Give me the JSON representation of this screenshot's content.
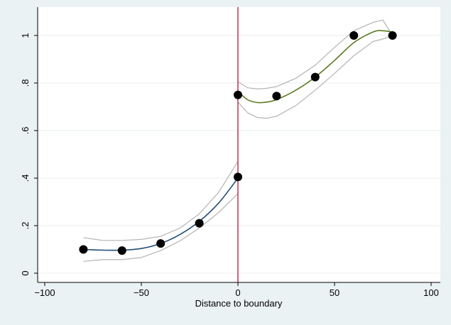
{
  "chart_data": {
    "type": "scatter",
    "title": "",
    "xlabel": "Distance to boundary",
    "ylabel": "",
    "xlim": [
      -100,
      100
    ],
    "ylim": [
      0,
      1
    ],
    "xticks": [
      -100,
      -50,
      0,
      50,
      100
    ],
    "xtick_labels": [
      "−100",
      "−50",
      "0",
      "50",
      "100"
    ],
    "yticks": [
      0,
      0.2,
      0.4,
      0.6,
      0.8,
      1
    ],
    "ytick_labels": [
      "0",
      ".2",
      ".4",
      ".6",
      ".8",
      "1"
    ],
    "grid": true,
    "legend": "none",
    "vline": {
      "x": 0,
      "color": "#b2163a"
    },
    "points": [
      {
        "x": -80,
        "y": 0.1
      },
      {
        "x": -60,
        "y": 0.095
      },
      {
        "x": -40,
        "y": 0.125
      },
      {
        "x": -20,
        "y": 0.21
      },
      {
        "x": 0,
        "y": 0.405
      },
      {
        "x": 0,
        "y": 0.75
      },
      {
        "x": 20,
        "y": 0.745
      },
      {
        "x": 40,
        "y": 0.825
      },
      {
        "x": 60,
        "y": 1.0
      },
      {
        "x": 80,
        "y": 1.0
      }
    ],
    "fits": [
      {
        "side": "left",
        "color": "#1f4e79",
        "x": [
          -80,
          -70,
          -60,
          -50,
          -40,
          -30,
          -20,
          -10,
          0
        ],
        "y": [
          0.1,
          0.097,
          0.097,
          0.104,
          0.125,
          0.163,
          0.218,
          0.295,
          0.4
        ],
        "upper": [
          0.15,
          0.138,
          0.138,
          0.142,
          0.155,
          0.19,
          0.25,
          0.34,
          0.47
        ],
        "lower": [
          0.05,
          0.057,
          0.057,
          0.066,
          0.095,
          0.136,
          0.19,
          0.255,
          0.335
        ]
      },
      {
        "side": "right",
        "color": "#5a7a1e",
        "x": [
          0,
          5,
          10,
          15,
          20,
          30,
          40,
          50,
          60,
          70,
          75,
          80
        ],
        "y": [
          0.765,
          0.73,
          0.718,
          0.72,
          0.73,
          0.77,
          0.825,
          0.895,
          0.97,
          1.015,
          1.02,
          1.015
        ],
        "upper": [
          0.805,
          0.78,
          0.775,
          0.778,
          0.785,
          0.82,
          0.875,
          0.95,
          1.02,
          1.055,
          1.065,
          1.0
        ],
        "lower": [
          0.72,
          0.675,
          0.655,
          0.652,
          0.66,
          0.705,
          0.77,
          0.84,
          0.915,
          0.975,
          0.985,
          1.0
        ]
      }
    ],
    "colors": {
      "plot_bg": "#ffffff",
      "outer_bg": "#eaf2f3",
      "grid": "#e8eff0",
      "ci": "#b4b4b4",
      "marker": "#000000"
    }
  }
}
